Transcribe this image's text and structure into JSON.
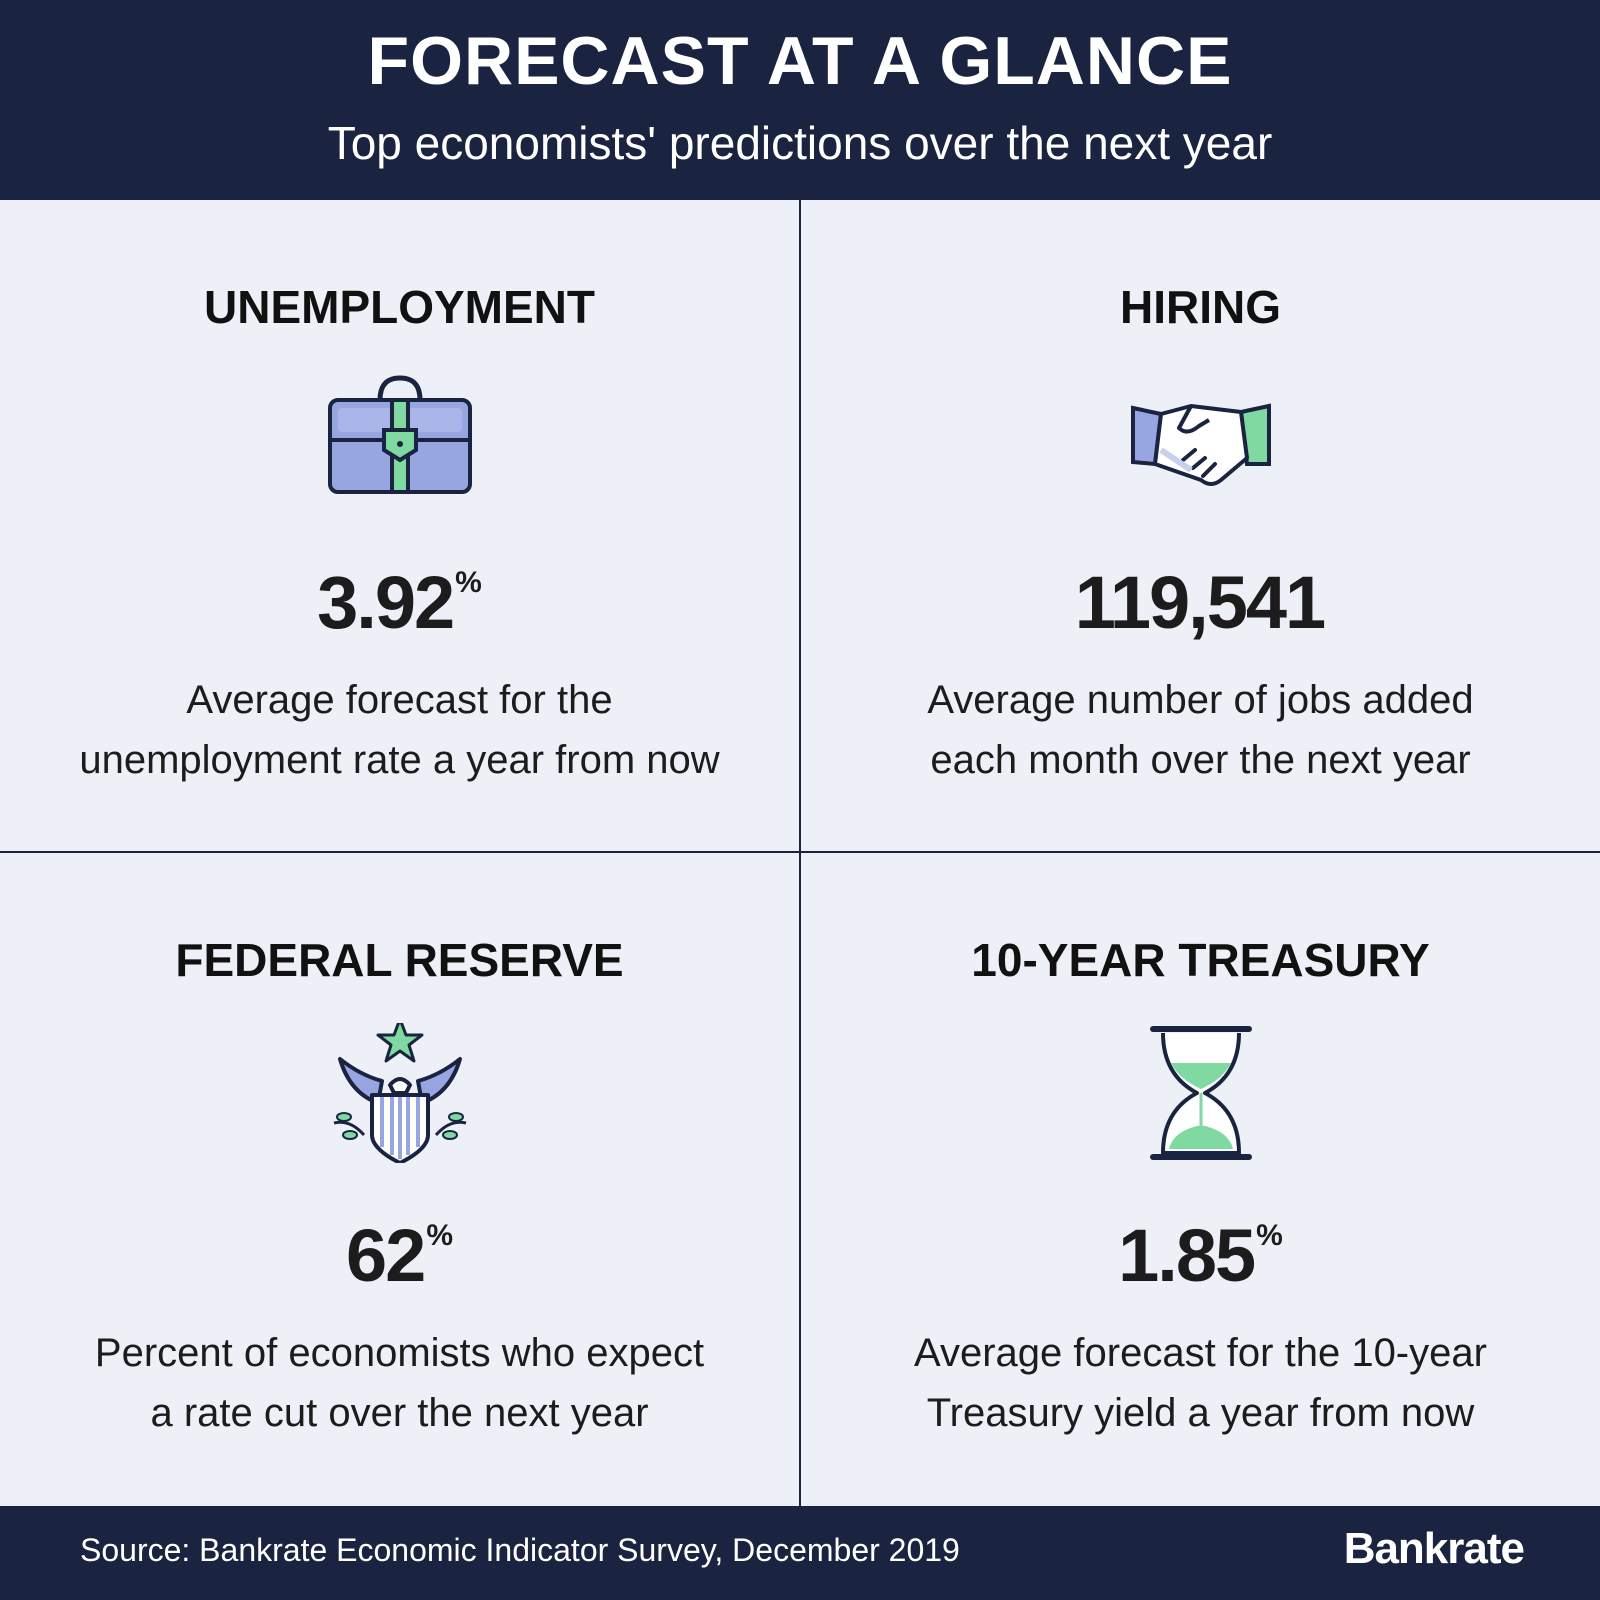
{
  "header": {
    "title": "FORECAST AT A GLANCE",
    "subtitle": "Top economists' predictions over the next year"
  },
  "cards": [
    {
      "heading": "UNEMPLOYMENT",
      "icon": "briefcase-icon",
      "value": "3.92",
      "unit": "%",
      "line1": "Average forecast for the",
      "line2": "unemployment rate a year from now"
    },
    {
      "heading": "HIRING",
      "icon": "handshake-icon",
      "value": "119,541",
      "unit": "",
      "line1": "Average number of jobs added",
      "line2": "each month over the next year"
    },
    {
      "heading": "FEDERAL RESERVE",
      "icon": "eagle-crest-icon",
      "value": "62",
      "unit": "%",
      "line1": "Percent of economists who expect",
      "line2": "a rate cut over the next year"
    },
    {
      "heading": "10-YEAR TREASURY",
      "icon": "hourglass-icon",
      "value": "1.85",
      "unit": "%",
      "line1": "Average forecast for the 10-year",
      "line2": "Treasury yield a year from now"
    }
  ],
  "footer": {
    "source": "Source: Bankrate Economic Indicator Survey, December 2019",
    "logo": "Bankrate"
  },
  "colors": {
    "navy": "#1a2440",
    "background": "#eef0f7",
    "icon_purple": "#97a6e0",
    "icon_green": "#7fd9a1"
  }
}
